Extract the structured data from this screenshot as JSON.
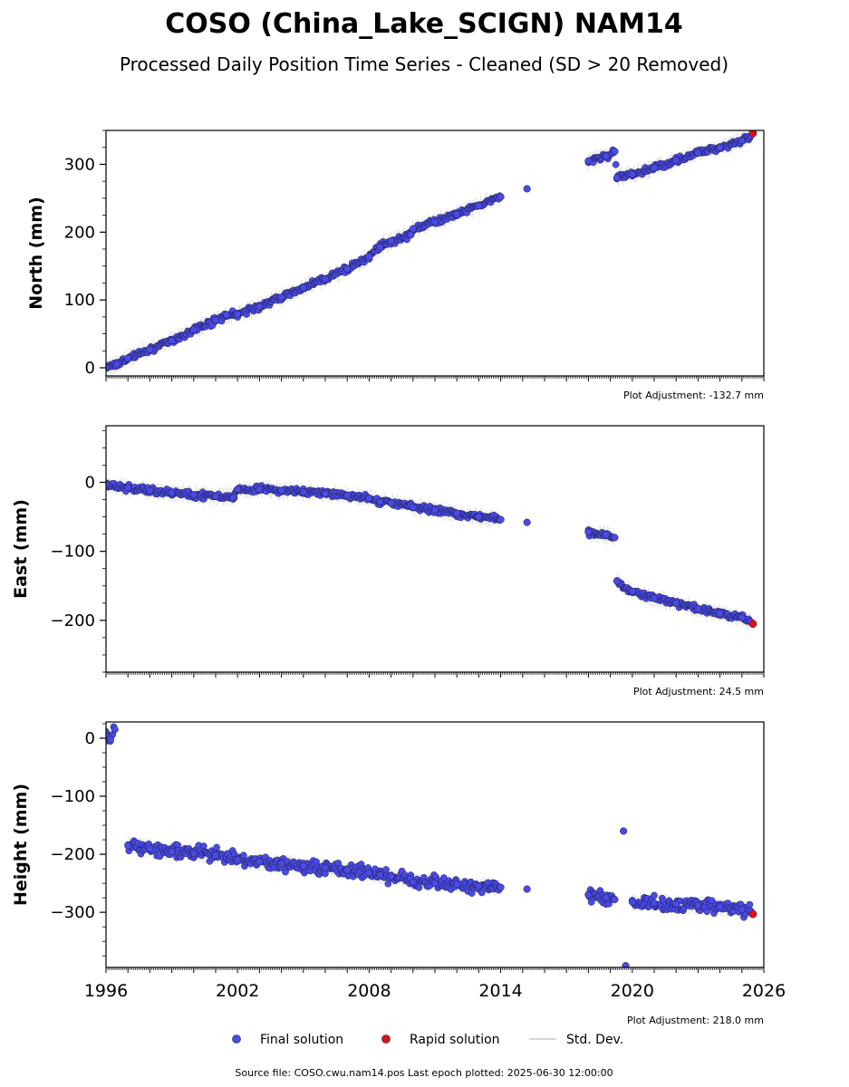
{
  "title": "COSO (China_Lake_SCIGN) NAM14",
  "subtitle": "Processed Daily Position Time Series - Cleaned (SD > 20 Removed)",
  "footer": "Source file: COSO.cwu.nam14.pos  Last epoch plotted: 2025-06-30 12:00:00",
  "legend": {
    "final_label": "Final solution",
    "rapid_label": "Rapid solution",
    "std_label": "Std. Dev."
  },
  "colors": {
    "final_fill": "#4a4ae8",
    "final_edge": "#1a1a3a",
    "rapid_fill": "#e01010",
    "std_line": "#9a9a9a"
  },
  "x_ticks": [
    "1996",
    "2002",
    "2008",
    "2014",
    "2020",
    "2026"
  ],
  "chart_data": [
    {
      "type": "scatter",
      "ylabel": "North (mm)",
      "adjustment": "Plot Adjustment: -132.7 mm",
      "xlim": [
        1996,
        2026
      ],
      "ylim": [
        -12,
        350
      ],
      "yticks": [
        0,
        100,
        200,
        300
      ],
      "yticklabels": [
        "0",
        "100",
        "200",
        "300"
      ],
      "series": [
        {
          "kind": "final",
          "x": [
            1996.0,
            1996.5,
            1997.0,
            1998.0,
            1999.0,
            2000.0,
            2001.0,
            2001.5,
            2002.0,
            2003.0,
            2004.0,
            2005.0,
            2006.0,
            2007.0,
            2008.0,
            2008.5,
            2009.0,
            2009.9,
            2010.0,
            2011.0,
            2012.0,
            2013.0,
            2014.0,
            2015.2,
            2018.0,
            2018.8,
            2019.2,
            2019.3,
            2020.0,
            2021.0,
            2022.0,
            2023.0,
            2024.0,
            2025.0,
            2025.4
          ],
          "y": [
            0,
            5,
            14,
            27,
            40,
            56,
            70,
            78,
            79,
            90,
            104,
            118,
            131,
            146,
            164,
            178,
            187,
            196,
            205,
            215,
            226,
            239,
            252,
            264,
            305,
            312,
            319,
            280,
            285,
            295,
            306,
            317,
            325,
            335,
            342
          ]
        },
        {
          "kind": "rapid",
          "x": [
            2025.5
          ],
          "y": [
            346
          ]
        }
      ]
    },
    {
      "type": "scatter",
      "ylabel": "East (mm)",
      "adjustment": "Plot Adjustment: 24.5 mm",
      "xlim": [
        1996,
        2026
      ],
      "ylim": [
        -275,
        82
      ],
      "yticks": [
        0,
        -100,
        -200
      ],
      "yticklabels": [
        "0",
        "−100",
        "−200"
      ],
      "series": [
        {
          "kind": "final",
          "x": [
            1996.0,
            1997.0,
            1998.0,
            1999.0,
            2000.0,
            2001.0,
            2001.8,
            2002.0,
            2003.0,
            2004.0,
            2005.0,
            2006.0,
            2007.0,
            2008.0,
            2008.5,
            2009.0,
            2009.9,
            2010.0,
            2011.0,
            2012.0,
            2013.0,
            2014.0,
            2015.2,
            2018.0,
            2018.8,
            2019.2,
            2019.3,
            2020.0,
            2021.0,
            2022.0,
            2023.0,
            2024.0,
            2025.0,
            2025.4
          ],
          "y": [
            -3,
            -8,
            -12,
            -15,
            -18,
            -20,
            -22,
            -10,
            -10,
            -12,
            -14,
            -16,
            -19,
            -23,
            -28,
            -30,
            -33,
            -36,
            -40,
            -45,
            -50,
            -54,
            -58,
            -72,
            -76,
            -80,
            -143,
            -158,
            -168,
            -175,
            -183,
            -190,
            -196,
            -202
          ]
        },
        {
          "kind": "rapid",
          "x": [
            2025.5
          ],
          "y": [
            -205
          ]
        }
      ]
    },
    {
      "type": "scatter",
      "ylabel": "Height (mm)",
      "adjustment": "Plot Adjustment: 218.0 mm",
      "xlim": [
        1996,
        2026
      ],
      "ylim": [
        -395,
        28
      ],
      "yticks": [
        0,
        -100,
        -200,
        -300
      ],
      "yticklabels": [
        "0",
        "−100",
        "−200",
        "−300"
      ],
      "series": [
        {
          "kind": "final",
          "x": [
            1996.0,
            1996.2,
            1996.4,
            1997.0,
            1998.0,
            1999.0,
            2000.0,
            2001.0,
            2002.0,
            2003.0,
            2004.0,
            2005.0,
            2006.0,
            2007.0,
            2008.0,
            2008.5,
            2009.0,
            2009.9,
            2010.0,
            2011.0,
            2012.0,
            2013.0,
            2014.0,
            2015.2,
            2018.0,
            2018.8,
            2019.2,
            2019.6,
            2019.7,
            2020.0,
            2021.0,
            2022.0,
            2023.0,
            2024.0,
            2025.0,
            2025.4
          ],
          "y": [
            5,
            -2,
            15,
            -185,
            -190,
            -195,
            -198,
            -202,
            -210,
            -213,
            -216,
            -220,
            -223,
            -227,
            -232,
            -236,
            -238,
            -242,
            -248,
            -250,
            -252,
            -255,
            -257,
            -260,
            -270,
            -275,
            -278,
            -160,
            -392,
            -282,
            -284,
            -286,
            -288,
            -291,
            -295,
            -298
          ]
        },
        {
          "kind": "rapid",
          "x": [
            2025.5
          ],
          "y": [
            -303
          ]
        }
      ]
    }
  ]
}
